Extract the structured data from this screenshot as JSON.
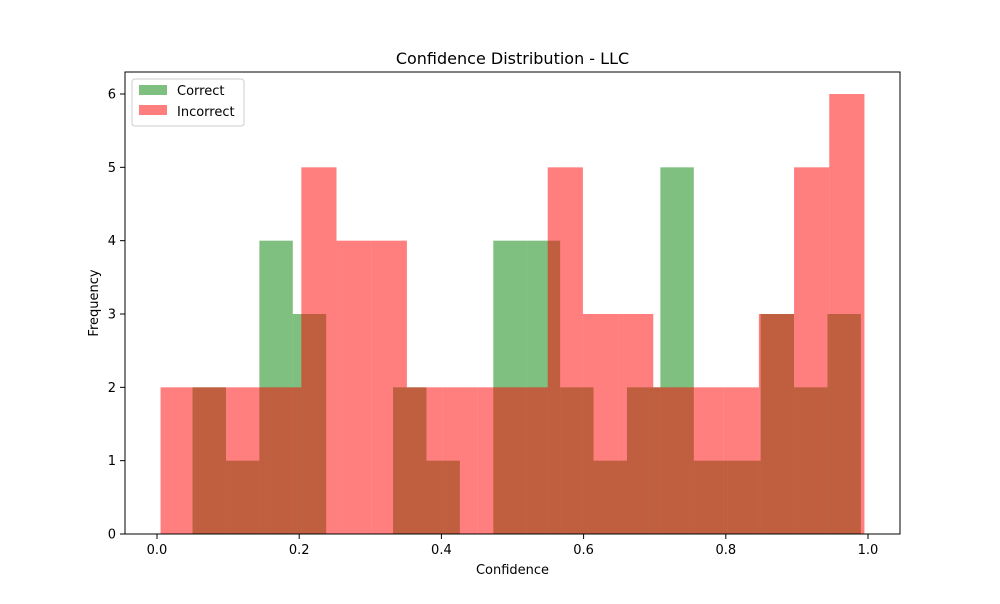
{
  "chart_data": {
    "type": "bar",
    "title": "Confidence Distribution - LLC",
    "xlabel": "Confidence",
    "ylabel": "Frequency",
    "xlim": [
      -0.045,
      1.045
    ],
    "ylim": [
      0,
      6.3
    ],
    "x_ticks": [
      0.0,
      0.2,
      0.4,
      0.6,
      0.8,
      1.0
    ],
    "x_tick_labels": [
      "0.0",
      "0.2",
      "0.4",
      "0.6",
      "0.8",
      "1.0"
    ],
    "y_ticks": [
      0,
      1,
      2,
      3,
      4,
      5,
      6
    ],
    "y_tick_labels": [
      "0",
      "1",
      "2",
      "3",
      "4",
      "5",
      "6"
    ],
    "grid": false,
    "legend_position": "top-left",
    "series": [
      {
        "name": "Correct",
        "color": "#008000",
        "opacity": 0.5,
        "bin_edges": [
          0.05,
          0.097,
          0.144,
          0.191,
          0.238,
          0.285,
          0.332,
          0.379,
          0.426,
          0.473,
          0.52,
          0.567,
          0.614,
          0.661,
          0.708,
          0.755,
          0.802,
          0.849,
          0.896,
          0.943,
          0.99
        ],
        "counts": [
          2,
          1,
          4,
          3,
          0,
          0,
          2,
          1,
          0,
          4,
          4,
          2,
          1,
          2,
          5,
          1,
          1,
          3,
          2,
          3
        ]
      },
      {
        "name": "Incorrect",
        "color": "#ff0000",
        "opacity": 0.5,
        "bin_edges": [
          0.005,
          0.0545,
          0.104,
          0.1535,
          0.203,
          0.2525,
          0.302,
          0.3515,
          0.401,
          0.4505,
          0.5,
          0.5495,
          0.599,
          0.6485,
          0.698,
          0.7475,
          0.797,
          0.8465,
          0.896,
          0.9455,
          0.995
        ],
        "counts": [
          2,
          2,
          2,
          2,
          5,
          4,
          4,
          2,
          2,
          2,
          2,
          5,
          3,
          3,
          2,
          2,
          2,
          3,
          5,
          6
        ]
      }
    ]
  }
}
